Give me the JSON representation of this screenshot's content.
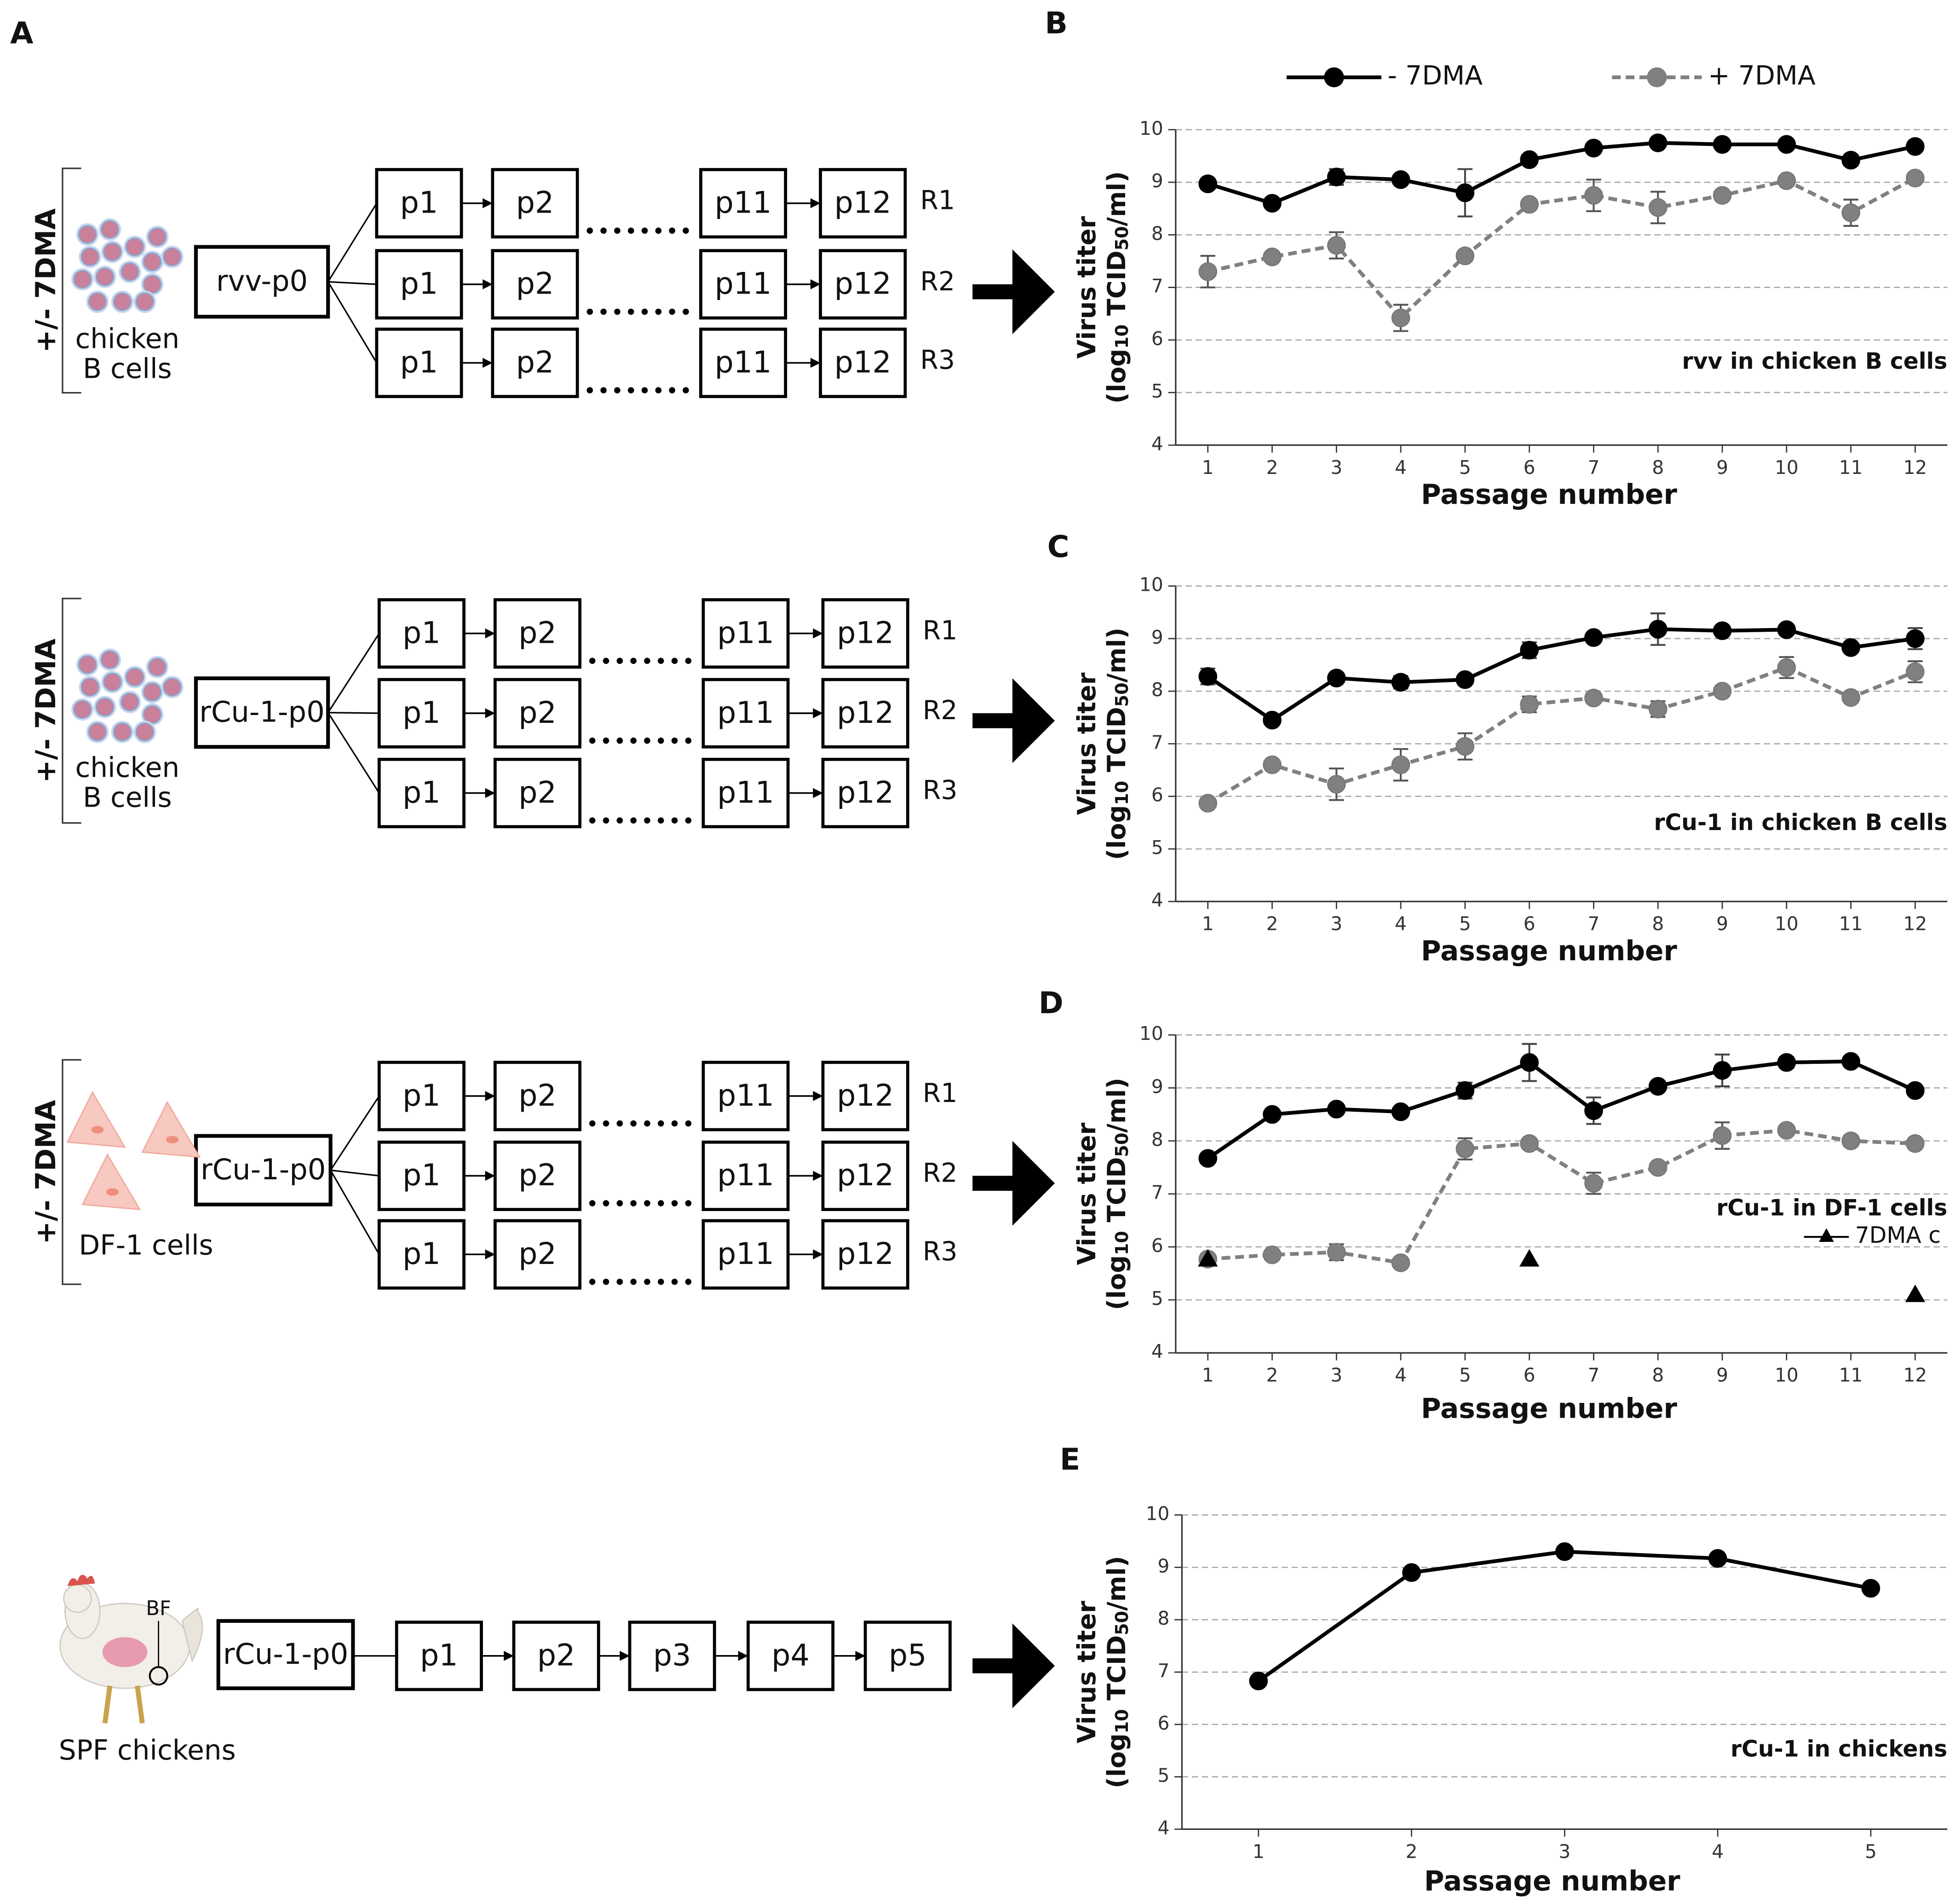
{
  "diagram": {
    "panel": "A",
    "rows": [
      {
        "treatment": "+/- 7DMA",
        "cells": [
          "chicken",
          "B cells"
        ],
        "source": "rvv-p0",
        "replicates": [
          {
            "passages": [
              "p1",
              "p2",
              "p11",
              "p12"
            ],
            "name": "R1"
          },
          {
            "passages": [
              "p1",
              "p2",
              "p11",
              "p12"
            ],
            "name": "R2"
          },
          {
            "passages": [
              "p1",
              "p2",
              "p11",
              "p12"
            ],
            "name": "R3"
          }
        ]
      },
      {
        "treatment": "+/- 7DMA",
        "cells": [
          "chicken",
          "B cells"
        ],
        "source": "rCu-1-p0",
        "replicates": [
          {
            "passages": [
              "p1",
              "p2",
              "p11",
              "p12"
            ],
            "name": "R1"
          },
          {
            "passages": [
              "p1",
              "p2",
              "p11",
              "p12"
            ],
            "name": "R2"
          },
          {
            "passages": [
              "p1",
              "p2",
              "p11",
              "p12"
            ],
            "name": "R3"
          }
        ]
      },
      {
        "treatment": "+/- 7DMA",
        "cells": [
          "DF-1 cells"
        ],
        "source": "rCu-1-p0",
        "replicates": [
          {
            "passages": [
              "p1",
              "p2",
              "p11",
              "p12"
            ],
            "name": "R1"
          },
          {
            "passages": [
              "p1",
              "p2",
              "p11",
              "p12"
            ],
            "name": "R2"
          },
          {
            "passages": [
              "p1",
              "p2",
              "p11",
              "p12"
            ],
            "name": "R3"
          }
        ]
      }
    ],
    "chicken_row": {
      "cells": "SPF chickens",
      "organ": "BF",
      "source": "rCu-1-p0",
      "passages": [
        "p1",
        "p2",
        "p3",
        "p4",
        "p5"
      ]
    }
  },
  "chart_data": [
    {
      "type": "line",
      "panel": "B",
      "annotation": "rvv in chicken B cells",
      "ylabel": "Virus titer",
      "ylabel_2": [
        "(log",
        "10",
        " TCID",
        "50",
        "/ml)"
      ],
      "xlabel": "Passage number",
      "x": [
        1,
        2,
        3,
        4,
        5,
        6,
        7,
        8,
        9,
        10,
        11,
        12
      ],
      "xlim": [
        0.5,
        12.5
      ],
      "xticks": [
        1,
        2,
        3,
        4,
        5,
        6,
        7,
        8,
        9,
        10,
        11,
        12
      ],
      "ylim": [
        4,
        10
      ],
      "yticks": [
        4,
        5,
        6,
        7,
        8,
        9,
        10
      ],
      "grid": true,
      "legend": "top",
      "series": [
        {
          "name": "- 7DMA",
          "color": "#000000",
          "dash": false,
          "marker": "circle",
          "values": [
            8.97,
            8.6,
            9.1,
            9.05,
            8.8,
            9.43,
            9.65,
            9.75,
            9.72,
            9.72,
            9.42,
            9.68
          ],
          "errors": [
            0.1,
            0.05,
            0.15,
            0.05,
            0.45,
            0.05,
            0.05,
            0.05,
            0.05,
            0.05,
            0.1,
            0.05
          ]
        },
        {
          "name": "+ 7DMA",
          "color": "#808080",
          "dash": true,
          "marker": "circle",
          "values": [
            7.3,
            7.58,
            7.8,
            6.42,
            7.6,
            8.58,
            8.75,
            8.52,
            8.75,
            9.03,
            8.42,
            9.08
          ],
          "errors": [
            0.3,
            0.05,
            0.25,
            0.25,
            0.05,
            0.05,
            0.3,
            0.3,
            0.05,
            0.05,
            0.25,
            0.05
          ]
        }
      ]
    },
    {
      "type": "line",
      "panel": "C",
      "annotation": "rCu-1 in chicken B cells",
      "ylabel": "Virus titer",
      "ylabel_2": [
        "(log",
        "10",
        " TCID",
        "50",
        "/ml)"
      ],
      "xlabel": "Passage number",
      "x": [
        1,
        2,
        3,
        4,
        5,
        6,
        7,
        8,
        9,
        10,
        11,
        12
      ],
      "xlim": [
        0.5,
        12.5
      ],
      "xticks": [
        1,
        2,
        3,
        4,
        5,
        6,
        7,
        8,
        9,
        10,
        11,
        12
      ],
      "ylim": [
        4,
        10
      ],
      "yticks": [
        4,
        5,
        6,
        7,
        8,
        9,
        10
      ],
      "grid": true,
      "series": [
        {
          "color": "#000000",
          "dash": false,
          "marker": "circle",
          "values": [
            8.28,
            7.45,
            8.25,
            8.17,
            8.22,
            8.78,
            9.02,
            9.18,
            9.15,
            9.17,
            8.83,
            9.0
          ],
          "errors": [
            0.15,
            0.05,
            0.05,
            0.12,
            0.05,
            0.15,
            0.05,
            0.3,
            0.05,
            0.05,
            0.05,
            0.2
          ]
        },
        {
          "color": "#808080",
          "dash": true,
          "marker": "circle",
          "values": [
            5.87,
            6.6,
            6.23,
            6.6,
            6.95,
            7.75,
            7.87,
            7.66,
            8.0,
            8.45,
            7.88,
            8.37
          ],
          "errors": [
            0.05,
            0.05,
            0.3,
            0.3,
            0.25,
            0.15,
            0.05,
            0.15,
            0.05,
            0.2,
            0.05,
            0.2
          ]
        }
      ]
    },
    {
      "type": "line",
      "panel": "D",
      "annotation": "rCu-1 in DF-1 cells",
      "ylabel": "Virus titer",
      "ylabel_2": [
        "(log",
        "10",
        " TCID",
        "50",
        "/ml)"
      ],
      "xlabel": "Passage number",
      "x": [
        1,
        2,
        3,
        4,
        5,
        6,
        7,
        8,
        9,
        10,
        11,
        12
      ],
      "xlim": [
        0.5,
        12.5
      ],
      "xticks": [
        1,
        2,
        3,
        4,
        5,
        6,
        7,
        8,
        9,
        10,
        11,
        12
      ],
      "ylim": [
        4,
        10
      ],
      "yticks": [
        4,
        5,
        6,
        7,
        8,
        9,
        10
      ],
      "grid": true,
      "legend": "right",
      "series": [
        {
          "color": "#000000",
          "dash": false,
          "marker": "circle",
          "values": [
            7.67,
            8.5,
            8.6,
            8.55,
            8.95,
            9.48,
            8.57,
            9.03,
            9.33,
            9.48,
            9.5,
            8.95
          ],
          "errors": [
            0.05,
            0.05,
            0.05,
            0.05,
            0.15,
            0.35,
            0.25,
            0.05,
            0.3,
            0.1,
            0.05,
            0.05
          ]
        },
        {
          "color": "#808080",
          "dash": true,
          "marker": "circle",
          "values": [
            5.77,
            5.85,
            5.9,
            5.7,
            7.85,
            7.95,
            7.2,
            7.5,
            8.1,
            8.2,
            8.0,
            7.95
          ],
          "errors": [
            0.05,
            0.05,
            0.15,
            0.05,
            0.2,
            0.05,
            0.2,
            0.05,
            0.25,
            0.05,
            0.1,
            0.05
          ]
        },
        {
          "name": "7DMA c",
          "color": "#000000",
          "line": false,
          "marker": "triangle",
          "values": [
            5.77,
            null,
            null,
            null,
            null,
            5.77,
            null,
            null,
            null,
            null,
            null,
            5.1
          ]
        }
      ]
    },
    {
      "type": "line",
      "panel": "E",
      "annotation": "rCu-1 in chickens",
      "ylabel": "Virus titer",
      "ylabel_2": [
        "(log",
        "10",
        " TCID",
        "50",
        "/ml)"
      ],
      "xlabel": "Passage number",
      "x": [
        1,
        2,
        3,
        4,
        5
      ],
      "xlim": [
        0.5,
        5.5
      ],
      "xticks": [
        1,
        2,
        3,
        4,
        5
      ],
      "ylim": [
        4,
        10
      ],
      "yticks": [
        4,
        5,
        6,
        7,
        8,
        9,
        10
      ],
      "grid": true,
      "series": [
        {
          "color": "#000000",
          "dash": false,
          "marker": "circle",
          "values": [
            6.83,
            8.9,
            9.3,
            9.17,
            8.6
          ]
        }
      ]
    }
  ]
}
